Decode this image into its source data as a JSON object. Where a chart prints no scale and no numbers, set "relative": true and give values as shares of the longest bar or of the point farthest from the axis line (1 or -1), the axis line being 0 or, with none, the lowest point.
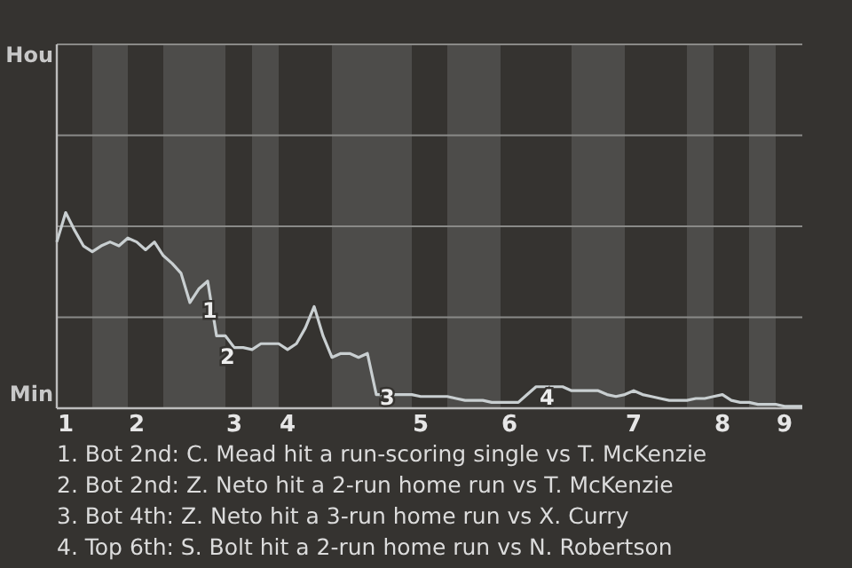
{
  "chart_data": {
    "type": "line",
    "relative": true,
    "categories": [
      null,
      "1",
      null,
      null,
      null,
      null,
      null,
      null,
      null,
      "2",
      null,
      null,
      null,
      null,
      null,
      null,
      null,
      null,
      null,
      null,
      "3",
      null,
      null,
      null,
      null,
      null,
      "4",
      null,
      null,
      null,
      null,
      null,
      null,
      null,
      null,
      null,
      null,
      null,
      null,
      null,
      null,
      "5",
      null,
      null,
      null,
      null,
      null,
      null,
      null,
      null,
      null,
      "6",
      null,
      null,
      null,
      null,
      null,
      null,
      null,
      null,
      null,
      null,
      null,
      null,
      null,
      "7",
      null,
      null,
      null,
      null,
      null,
      null,
      null,
      null,
      null,
      "8",
      null,
      null,
      null,
      null,
      null,
      null,
      "9",
      null,
      null
    ],
    "series": [
      {
        "color": "#c9cfd1",
        "values": [
          0.85,
          1,
          0.91,
          0.83,
          0.8,
          0.83,
          0.85,
          0.83,
          0.87,
          0.85,
          0.81,
          0.85,
          0.78,
          0.74,
          0.69,
          0.54,
          0.61,
          0.65,
          0.37,
          0.37,
          0.31,
          0.31,
          0.3,
          0.33,
          0.33,
          0.33,
          0.3,
          0.33,
          0.41,
          0.52,
          0.37,
          0.26,
          0.28,
          0.28,
          0.26,
          0.28,
          0.07,
          0.07,
          0.07,
          0.07,
          0.07,
          0.06,
          0.06,
          0.06,
          0.06,
          0.05,
          0.04,
          0.04,
          0.04,
          0.03,
          0.03,
          0.03,
          0.03,
          0.07,
          0.11,
          0.11,
          0.11,
          0.11,
          0.09,
          0.09,
          0.09,
          0.09,
          0.07,
          0.06,
          0.07,
          0.09,
          0.07,
          0.06,
          0.05,
          0.04,
          0.04,
          0.04,
          0.05,
          0.05,
          0.06,
          0.07,
          0.04,
          0.03,
          0.03,
          0.02,
          0.02,
          0.02,
          0.01,
          0.01,
          0.01
        ]
      }
    ],
    "ref_lines": [
      {
        "axis": "y",
        "value": 0.465,
        "color": "#8a8a88"
      },
      {
        "axis": "y",
        "value": 0.93,
        "color": "#8a8a88"
      },
      {
        "axis": "y",
        "value": 1.395,
        "color": "#8a8a88"
      },
      {
        "axis": "y",
        "value": 1.86,
        "color": "#8a8a88"
      }
    ],
    "annotations": [
      "Hou",
      "Min",
      {
        "text": "1",
        "y": 0.61
      },
      {
        "text": "2",
        "y": 0.37
      },
      {
        "text": "3",
        "y": 0.07
      },
      {
        "text": "4",
        "y": 0.11
      },
      "1. Bot 2nd: C. Mead hit a run-scoring single vs T. McKenzie",
      "2. Bot 2nd: Z. Neto hit a 2-run home run vs T. McKenzie",
      "3. Bot 4th: Z. Neto hit a 3-run home run vs X. Curry",
      "4. Top 6th: S. Bolt hit a 2-run home run vs N. Robertson"
    ]
  }
}
